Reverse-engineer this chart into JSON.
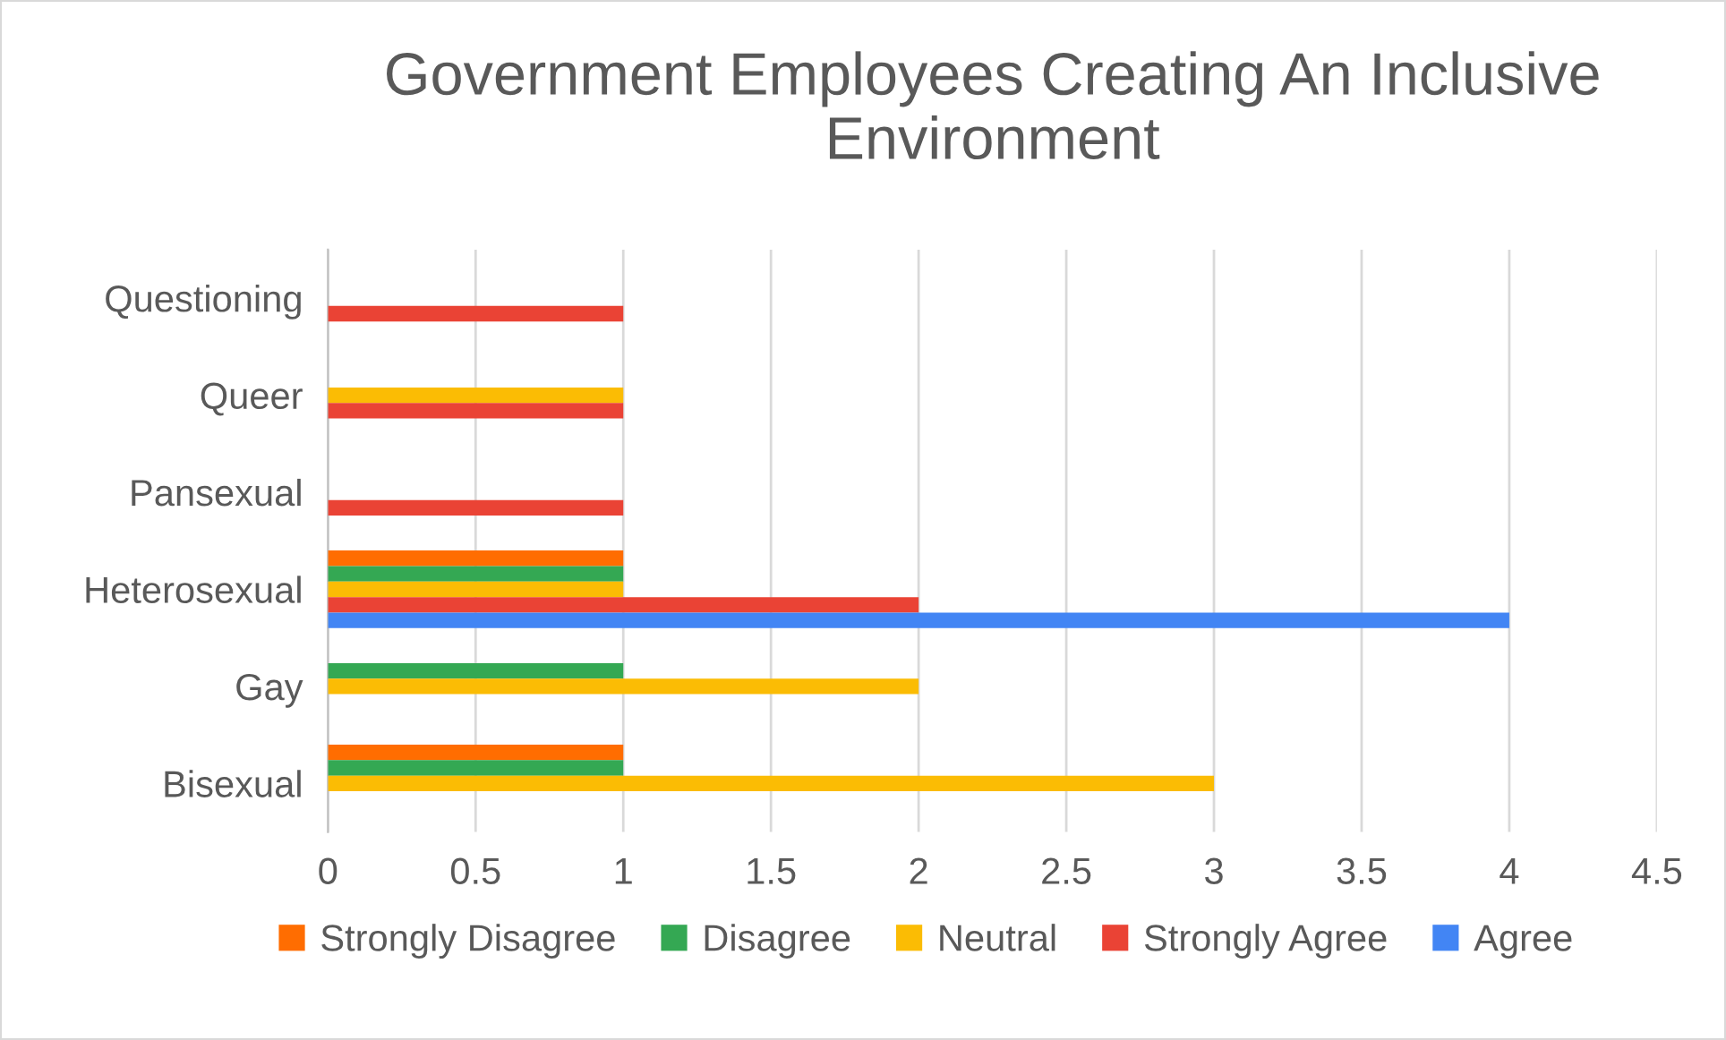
{
  "chart_data": {
    "type": "bar",
    "orientation": "horizontal",
    "title": "Government Employees Creating An Inclusive Environment",
    "categories": [
      "Questioning",
      "Queer",
      "Pansexual",
      "Heterosexual",
      "Gay",
      "Bisexual"
    ],
    "series": [
      {
        "name": "Strongly Disagree",
        "color": "#ff6d01",
        "values": [
          null,
          null,
          null,
          1,
          null,
          1
        ]
      },
      {
        "name": "Disagree",
        "color": "#34a853",
        "values": [
          null,
          null,
          null,
          1,
          1,
          1
        ]
      },
      {
        "name": "Neutral",
        "color": "#fbbc04",
        "values": [
          null,
          1,
          null,
          1,
          2,
          3
        ]
      },
      {
        "name": "Strongly Agree",
        "color": "#ea4335",
        "values": [
          1,
          1,
          1,
          2,
          null,
          null
        ]
      },
      {
        "name": "Agree",
        "color": "#4285f4",
        "values": [
          null,
          null,
          null,
          4,
          null,
          null
        ]
      }
    ],
    "xlim": [
      0,
      4.5
    ],
    "xticks": [
      0,
      0.5,
      1,
      1.5,
      2,
      2.5,
      3,
      3.5,
      4,
      4.5
    ],
    "grid": "x",
    "legend": "bottom"
  }
}
